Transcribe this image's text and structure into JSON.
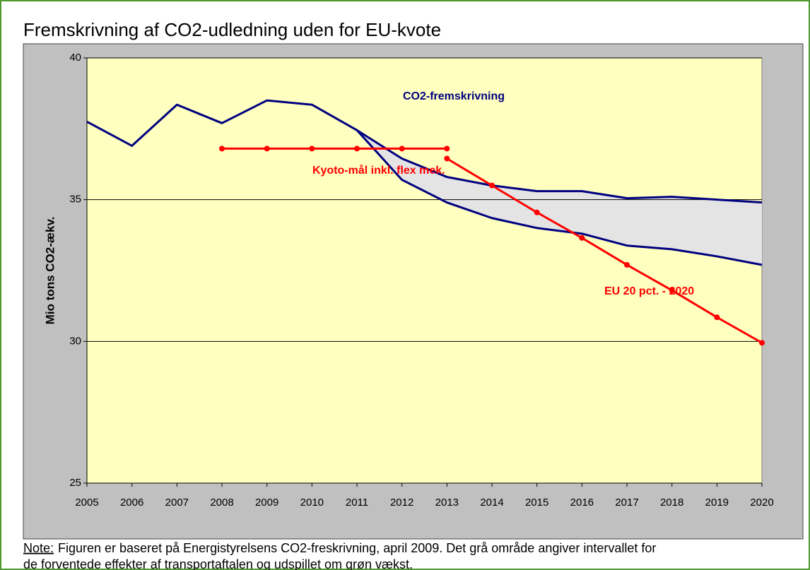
{
  "chart_data": {
    "type": "line",
    "title": "Fremskrivning af CO2-udledning uden for EU-kvote",
    "y_label": "Mio tons CO2-ækv.",
    "categories": [
      "2005",
      "2006",
      "2007",
      "2008",
      "2009",
      "2010",
      "2011",
      "2012",
      "2013",
      "2014",
      "2015",
      "2016",
      "2017",
      "2018",
      "2019",
      "2020"
    ],
    "series": [
      {
        "name": "CO2-fremskrivning",
        "color": "#000080",
        "values": [
          37.75,
          36.9,
          38.35,
          37.7,
          38.5,
          38.35,
          37.45,
          36.45,
          35.8,
          35.5,
          35.3,
          35.3,
          35.05,
          35.1,
          35.0,
          34.9
        ]
      },
      {
        "color": "#000080",
        "values": [
          null,
          null,
          null,
          null,
          null,
          null,
          37.45,
          35.7,
          34.9,
          34.35,
          34.0,
          33.8,
          33.38,
          33.25,
          33.0,
          32.7
        ]
      },
      {
        "name": "Kyoto-mål inkl. flex mek.",
        "color": "#ff0000",
        "markers": true,
        "values": [
          null,
          null,
          null,
          36.8,
          36.8,
          36.8,
          36.8,
          36.8,
          36.8,
          null,
          null,
          null,
          null,
          null,
          null,
          null
        ]
      },
      {
        "name": "EU 20 pct. - 2020",
        "color": "#ff0000",
        "markers": true,
        "values": [
          null,
          null,
          null,
          null,
          null,
          null,
          null,
          null,
          36.45,
          35.5,
          34.55,
          33.65,
          32.7,
          31.8,
          30.85,
          29.95
        ]
      }
    ],
    "band_color": "#e4e4e4",
    "ylim": [
      25,
      40
    ],
    "yticks": [
      25,
      30,
      35,
      40
    ],
    "grid": true,
    "note_label": "Note:",
    "note_lines": [
      "Figuren er baseret på Energistyrelsens CO2-freskrivning, april 2009.  Det grå område angiver intervallet for",
      "de forventede effekter af transportaftalen og udspillet om grøn vækst."
    ]
  }
}
